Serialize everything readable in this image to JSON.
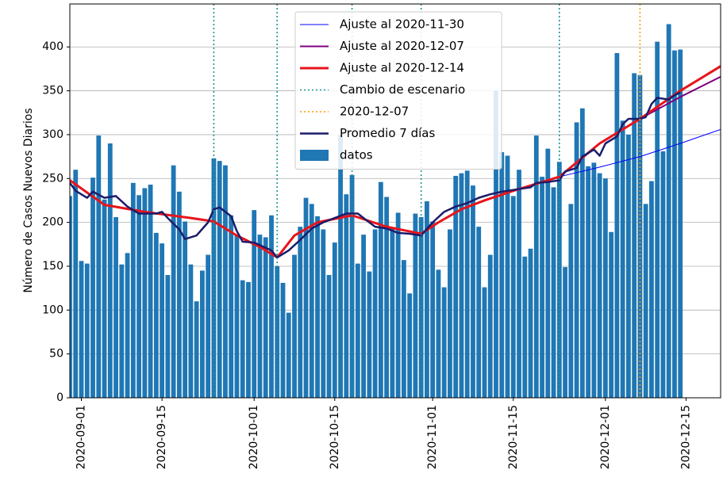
{
  "chart_data": {
    "type": "bar",
    "ylabel": "Número de Casos Nuevos Diarios",
    "xlim": [
      "2020-08-30",
      "2020-12-21"
    ],
    "xticks": [
      "2020-09-01",
      "2020-09-15",
      "2020-10-01",
      "2020-10-15",
      "2020-11-01",
      "2020-11-15",
      "2020-12-01",
      "2020-12-15"
    ],
    "ylim": [
      0,
      449
    ],
    "yticks": [
      0,
      50,
      100,
      150,
      200,
      250,
      300,
      350,
      400
    ],
    "grid": true,
    "legend": "upper center",
    "series": [
      {
        "name": "Ajuste al 2020-11-30",
        "type": "line",
        "color": "#0000ff",
        "width": 1,
        "x": [
          "2020-08-30",
          "2020-09-05",
          "2020-09-12",
          "2020-09-20",
          "2020-09-24",
          "2020-09-28",
          "2020-10-02",
          "2020-10-05",
          "2020-10-08",
          "2020-10-12",
          "2020-10-18",
          "2020-10-24",
          "2020-10-30",
          "2020-11-02",
          "2020-11-06",
          "2020-11-10",
          "2020-11-15",
          "2020-11-23",
          "2020-11-30",
          "2020-12-07",
          "2020-12-14",
          "2020-12-21"
        ],
        "values": [
          248,
          220,
          212,
          205,
          201,
          185,
          172,
          160,
          185,
          200,
          208,
          195,
          187,
          200,
          215,
          225,
          236,
          252,
          263,
          275,
          290,
          306
        ]
      },
      {
        "name": "Ajuste al 2020-12-07",
        "type": "line",
        "color": "#800080",
        "width": 2,
        "x": [
          "2020-08-30",
          "2020-09-05",
          "2020-09-12",
          "2020-09-20",
          "2020-09-24",
          "2020-09-28",
          "2020-10-02",
          "2020-10-05",
          "2020-10-08",
          "2020-10-12",
          "2020-10-18",
          "2020-10-24",
          "2020-10-30",
          "2020-11-02",
          "2020-11-06",
          "2020-11-10",
          "2020-11-15",
          "2020-11-23",
          "2020-11-30",
          "2020-12-07",
          "2020-12-14",
          "2020-12-21"
        ],
        "values": [
          248,
          220,
          212,
          205,
          201,
          185,
          172,
          160,
          185,
          200,
          208,
          195,
          187,
          200,
          215,
          225,
          236,
          252,
          290,
          318,
          343,
          366
        ]
      },
      {
        "name": "Ajuste al 2020-12-14",
        "type": "line",
        "color": "#e8141a",
        "width": 3,
        "x": [
          "2020-08-30",
          "2020-09-05",
          "2020-09-12",
          "2020-09-20",
          "2020-09-24",
          "2020-09-28",
          "2020-10-02",
          "2020-10-05",
          "2020-10-08",
          "2020-10-12",
          "2020-10-18",
          "2020-10-24",
          "2020-10-30",
          "2020-11-02",
          "2020-11-06",
          "2020-11-10",
          "2020-11-15",
          "2020-11-23",
          "2020-11-30",
          "2020-12-07",
          "2020-12-14",
          "2020-12-21"
        ],
        "values": [
          248,
          220,
          212,
          205,
          201,
          185,
          172,
          160,
          185,
          200,
          208,
          195,
          187,
          200,
          215,
          225,
          236,
          252,
          290,
          318,
          350,
          378
        ]
      },
      {
        "name": "Promedio 7 días",
        "type": "line",
        "color": "#1c1c6b",
        "width": 2.5,
        "x": [
          "2020-08-30",
          "2020-08-31",
          "2020-09-02",
          "2020-09-03",
          "2020-09-05",
          "2020-09-07",
          "2020-09-09",
          "2020-09-11",
          "2020-09-14",
          "2020-09-15",
          "2020-09-16",
          "2020-09-18",
          "2020-09-19",
          "2020-09-21",
          "2020-09-23",
          "2020-09-24",
          "2020-09-25",
          "2020-09-27",
          "2020-09-28",
          "2020-09-29",
          "2020-10-01",
          "2020-10-04",
          "2020-10-05",
          "2020-10-07",
          "2020-10-09",
          "2020-10-11",
          "2020-10-13",
          "2020-10-15",
          "2020-10-17",
          "2020-10-19",
          "2020-10-20",
          "2020-10-22",
          "2020-10-24",
          "2020-10-26",
          "2020-10-28",
          "2020-10-30",
          "2020-11-01",
          "2020-11-03",
          "2020-11-05",
          "2020-11-07",
          "2020-11-09",
          "2020-11-11",
          "2020-11-13",
          "2020-11-16",
          "2020-11-18",
          "2020-11-19",
          "2020-11-21",
          "2020-11-23",
          "2020-11-24",
          "2020-11-26",
          "2020-11-27",
          "2020-11-29",
          "2020-11-30",
          "2020-12-01",
          "2020-12-03",
          "2020-12-04",
          "2020-12-05",
          "2020-12-07",
          "2020-12-08",
          "2020-12-09",
          "2020-12-10",
          "2020-12-12",
          "2020-12-13",
          "2020-12-14"
        ],
        "values": [
          245,
          236,
          228,
          235,
          228,
          230,
          218,
          210,
          210,
          212,
          205,
          192,
          181,
          185,
          200,
          215,
          217,
          207,
          190,
          178,
          177,
          168,
          160,
          168,
          180,
          193,
          200,
          205,
          210,
          210,
          205,
          195,
          193,
          188,
          187,
          185,
          200,
          212,
          218,
          222,
          228,
          232,
          235,
          238,
          240,
          245,
          246,
          248,
          258,
          262,
          275,
          283,
          276,
          290,
          298,
          312,
          318,
          318,
          320,
          335,
          342,
          340,
          345,
          348
        ]
      },
      {
        "name": "datos",
        "type": "bar",
        "color": "#1f77b4",
        "x": [
          "2020-08-30",
          "2020-08-31",
          "2020-09-01",
          "2020-09-02",
          "2020-09-03",
          "2020-09-04",
          "2020-09-05",
          "2020-09-06",
          "2020-09-07",
          "2020-09-08",
          "2020-09-09",
          "2020-09-10",
          "2020-09-11",
          "2020-09-12",
          "2020-09-13",
          "2020-09-14",
          "2020-09-15",
          "2020-09-16",
          "2020-09-17",
          "2020-09-18",
          "2020-09-19",
          "2020-09-20",
          "2020-09-21",
          "2020-09-22",
          "2020-09-23",
          "2020-09-24",
          "2020-09-25",
          "2020-09-26",
          "2020-09-27",
          "2020-09-28",
          "2020-09-29",
          "2020-09-30",
          "2020-10-01",
          "2020-10-02",
          "2020-10-03",
          "2020-10-04",
          "2020-10-05",
          "2020-10-06",
          "2020-10-07",
          "2020-10-08",
          "2020-10-09",
          "2020-10-10",
          "2020-10-11",
          "2020-10-12",
          "2020-10-13",
          "2020-10-14",
          "2020-10-15",
          "2020-10-16",
          "2020-10-17",
          "2020-10-18",
          "2020-10-19",
          "2020-10-20",
          "2020-10-21",
          "2020-10-22",
          "2020-10-23",
          "2020-10-24",
          "2020-10-25",
          "2020-10-26",
          "2020-10-27",
          "2020-10-28",
          "2020-10-29",
          "2020-10-30",
          "2020-10-31",
          "2020-11-01",
          "2020-11-02",
          "2020-11-03",
          "2020-11-04",
          "2020-11-05",
          "2020-11-06",
          "2020-11-07",
          "2020-11-08",
          "2020-11-09",
          "2020-11-10",
          "2020-11-11",
          "2020-11-12",
          "2020-11-13",
          "2020-11-14",
          "2020-11-15",
          "2020-11-16",
          "2020-11-17",
          "2020-11-18",
          "2020-11-19",
          "2020-11-20",
          "2020-11-21",
          "2020-11-22",
          "2020-11-23",
          "2020-11-24",
          "2020-11-25",
          "2020-11-26",
          "2020-11-27",
          "2020-11-28",
          "2020-11-29",
          "2020-11-30",
          "2020-12-01",
          "2020-12-02",
          "2020-12-03",
          "2020-12-04",
          "2020-12-05",
          "2020-12-06",
          "2020-12-07",
          "2020-12-08",
          "2020-12-09",
          "2020-12-10",
          "2020-12-11",
          "2020-12-12",
          "2020-12-13",
          "2020-12-14"
        ],
        "values": [
          230,
          260,
          156,
          153,
          251,
          299,
          226,
          290,
          206,
          152,
          165,
          245,
          231,
          239,
          243,
          188,
          176,
          140,
          265,
          235,
          201,
          152,
          110,
          145,
          163,
          273,
          270,
          265,
          208,
          185,
          134,
          132,
          214,
          186,
          183,
          208,
          150,
          131,
          97,
          163,
          195,
          228,
          221,
          207,
          192,
          140,
          177,
          300,
          232,
          254,
          153,
          186,
          144,
          192,
          246,
          229,
          194,
          211,
          157,
          119,
          210,
          206,
          224,
          201,
          146,
          126,
          192,
          253,
          256,
          259,
          242,
          195,
          126,
          163,
          350,
          280,
          276,
          230,
          260,
          161,
          170,
          299,
          252,
          284,
          240,
          269,
          149,
          221,
          314,
          330,
          264,
          268,
          256,
          250,
          189,
          393,
          316,
          300,
          370,
          368,
          221,
          247,
          406,
          281,
          426,
          396,
          397
        ]
      }
    ],
    "vlines": [
      {
        "name": "Cambio de escenario",
        "color": "#1a9696",
        "x": [
          "2020-09-24",
          "2020-10-05",
          "2020-10-18",
          "2020-10-30",
          "2020-11-23"
        ]
      },
      {
        "name": "2020-12-07",
        "color": "#ff9900",
        "x": [
          "2020-12-07"
        ]
      }
    ]
  }
}
